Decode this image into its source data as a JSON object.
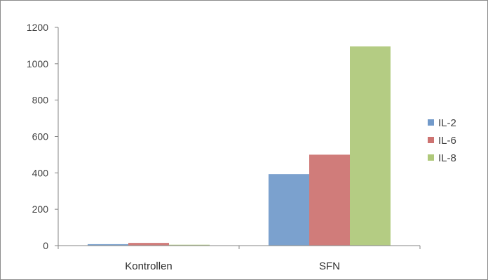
{
  "chart_data": {
    "type": "bar",
    "categories": [
      "Kontrollen",
      "SFN"
    ],
    "series": [
      {
        "name": "IL-2",
        "color": "#4f81bd",
        "values": [
          8,
          393
        ]
      },
      {
        "name": "IL-6",
        "color": "#c0504d",
        "values": [
          15,
          500
        ]
      },
      {
        "name": "IL-8",
        "color": "#9bbb59",
        "values": [
          5,
          1095
        ]
      }
    ],
    "ylim": [
      0,
      1200
    ],
    "yticks": [
      "0",
      "200",
      "400",
      "600",
      "800",
      "1000",
      "1200"
    ],
    "grid": false,
    "legend_position": "right",
    "title": "",
    "xlabel": "",
    "ylabel": ""
  }
}
